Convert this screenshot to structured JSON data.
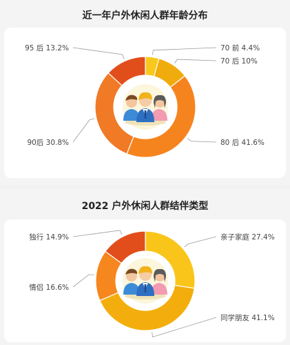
{
  "chart_data": [
    {
      "type": "pie",
      "style": "donut",
      "title": "近一年户外休闲人群年龄分布",
      "slices": [
        {
          "label": "70 前",
          "pct_text": "4.4%",
          "value": 4.4,
          "color": "#F8C81C"
        },
        {
          "label": "70 后",
          "pct_text": "10%",
          "value": 10.0,
          "color": "#F0AC0C"
        },
        {
          "label": "80 后",
          "pct_text": "41.6%",
          "value": 41.6,
          "color": "#F6841E"
        },
        {
          "label": "90后",
          "pct_text": "30.8%",
          "value": 30.8,
          "color": "#F07A26"
        },
        {
          "label": "95 后",
          "pct_text": "13.2%",
          "value": 13.2,
          "color": "#E24E1B"
        }
      ],
      "center_icon": "people-group-icon"
    },
    {
      "type": "pie",
      "style": "donut",
      "title": "2022 户外休闲人群结伴类型",
      "slices": [
        {
          "label": "亲子家庭",
          "pct_text": "27.4%",
          "value": 27.4,
          "color": "#F9C51A"
        },
        {
          "label": "同学朋友",
          "pct_text": "41.1%",
          "value": 41.1,
          "color": "#F3AE0D"
        },
        {
          "label": "情侣",
          "pct_text": "16.6%",
          "value": 16.6,
          "color": "#F6861E"
        },
        {
          "label": "独行",
          "pct_text": "14.9%",
          "value": 14.9,
          "color": "#E24E1B"
        }
      ],
      "center_icon": "people-group-icon"
    }
  ]
}
